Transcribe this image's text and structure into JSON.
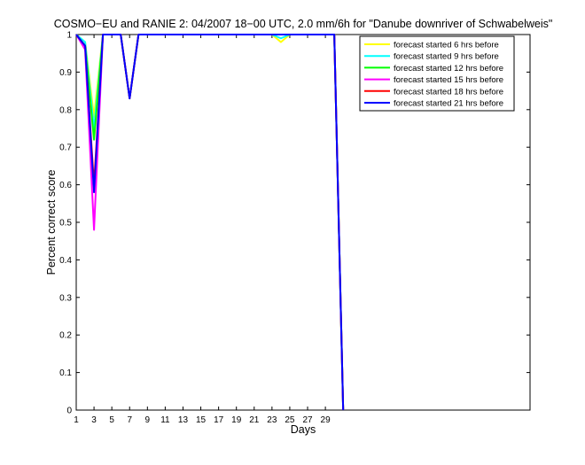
{
  "chart_data": {
    "type": "line",
    "title": "COSMO−EU and RANIE 2: 04/2007 18−00 UTC, 2.0 mm/6h for \"Danube downriver of Schwabelweis\"",
    "xlabel": "Days",
    "ylabel": "Percent correct score",
    "xlim": [
      1,
      52
    ],
    "ylim": [
      0,
      1
    ],
    "xticks": [
      1,
      3,
      5,
      7,
      9,
      11,
      13,
      15,
      17,
      19,
      21,
      23,
      25,
      27,
      29
    ],
    "yticks": [
      0,
      0.1,
      0.2,
      0.3,
      0.4,
      0.5,
      0.6,
      0.7,
      0.8,
      0.9,
      1
    ],
    "ytick_labels": [
      "0",
      "0.1",
      "0.2",
      "0.3",
      "0.4",
      "0.5",
      "0.6",
      "0.7",
      "0.8",
      "0.9",
      "1"
    ],
    "grid": false,
    "legend_position": "top-right",
    "series": [
      {
        "name": "forecast started 6 hrs before",
        "color": "#ffff00",
        "points": [
          [
            1,
            1
          ],
          [
            2,
            0.98
          ],
          [
            3,
            0.78
          ],
          [
            4,
            1
          ],
          [
            5,
            1
          ],
          [
            6,
            1
          ],
          [
            7,
            0.83
          ],
          [
            8,
            1
          ],
          [
            9,
            1
          ],
          [
            23,
            1
          ],
          [
            24,
            0.98
          ],
          [
            25,
            1
          ],
          [
            29,
            1
          ],
          [
            30,
            1
          ],
          [
            31,
            0
          ]
        ]
      },
      {
        "name": "forecast started 9 hrs before",
        "color": "#00ffff",
        "points": [
          [
            1,
            1
          ],
          [
            2,
            0.98
          ],
          [
            3,
            0.75
          ],
          [
            4,
            1
          ],
          [
            5,
            1
          ],
          [
            6,
            1
          ],
          [
            7,
            0.83
          ],
          [
            8,
            1
          ],
          [
            9,
            1
          ],
          [
            23,
            1
          ],
          [
            24,
            0.99
          ],
          [
            25,
            1
          ],
          [
            29,
            1
          ],
          [
            30,
            1
          ],
          [
            31,
            0
          ]
        ]
      },
      {
        "name": "forecast started 12 hrs before",
        "color": "#00ff00",
        "points": [
          [
            1,
            1
          ],
          [
            2,
            0.97
          ],
          [
            3,
            0.72
          ],
          [
            4,
            1
          ],
          [
            5,
            1
          ],
          [
            6,
            1
          ],
          [
            7,
            0.83
          ],
          [
            8,
            1
          ],
          [
            9,
            1
          ],
          [
            23,
            1
          ],
          [
            24,
            1
          ],
          [
            25,
            1
          ],
          [
            29,
            1
          ],
          [
            30,
            1
          ],
          [
            31,
            0
          ]
        ]
      },
      {
        "name": "forecast started 15 hrs before",
        "color": "#ff00ff",
        "points": [
          [
            1,
            1
          ],
          [
            2,
            0.96
          ],
          [
            3,
            0.48
          ],
          [
            4,
            1
          ],
          [
            5,
            1
          ],
          [
            6,
            1
          ],
          [
            7,
            0.83
          ],
          [
            8,
            1
          ],
          [
            9,
            1
          ],
          [
            23,
            1
          ],
          [
            24,
            1
          ],
          [
            25,
            1
          ],
          [
            29,
            1
          ],
          [
            30,
            1
          ],
          [
            31,
            0
          ]
        ]
      },
      {
        "name": "forecast started 18 hrs before",
        "color": "#ff0000",
        "points": [
          [
            1,
            1
          ],
          [
            2,
            0.97
          ],
          [
            3,
            0.6
          ],
          [
            4,
            1
          ],
          [
            5,
            1
          ],
          [
            6,
            1
          ],
          [
            7,
            0.83
          ],
          [
            8,
            1
          ],
          [
            9,
            1
          ],
          [
            23,
            1
          ],
          [
            24,
            1
          ],
          [
            25,
            1
          ],
          [
            29,
            1
          ],
          [
            30,
            1
          ],
          [
            31,
            0
          ]
        ]
      },
      {
        "name": "forecast started 21 hrs before",
        "color": "#0000ff",
        "points": [
          [
            1,
            1
          ],
          [
            2,
            0.97
          ],
          [
            3,
            0.58
          ],
          [
            4,
            1
          ],
          [
            5,
            1
          ],
          [
            6,
            1
          ],
          [
            7,
            0.83
          ],
          [
            8,
            1
          ],
          [
            9,
            1
          ],
          [
            23,
            1
          ],
          [
            24,
            1
          ],
          [
            25,
            1
          ],
          [
            29,
            1
          ],
          [
            30,
            1
          ],
          [
            31,
            0
          ]
        ]
      }
    ]
  }
}
